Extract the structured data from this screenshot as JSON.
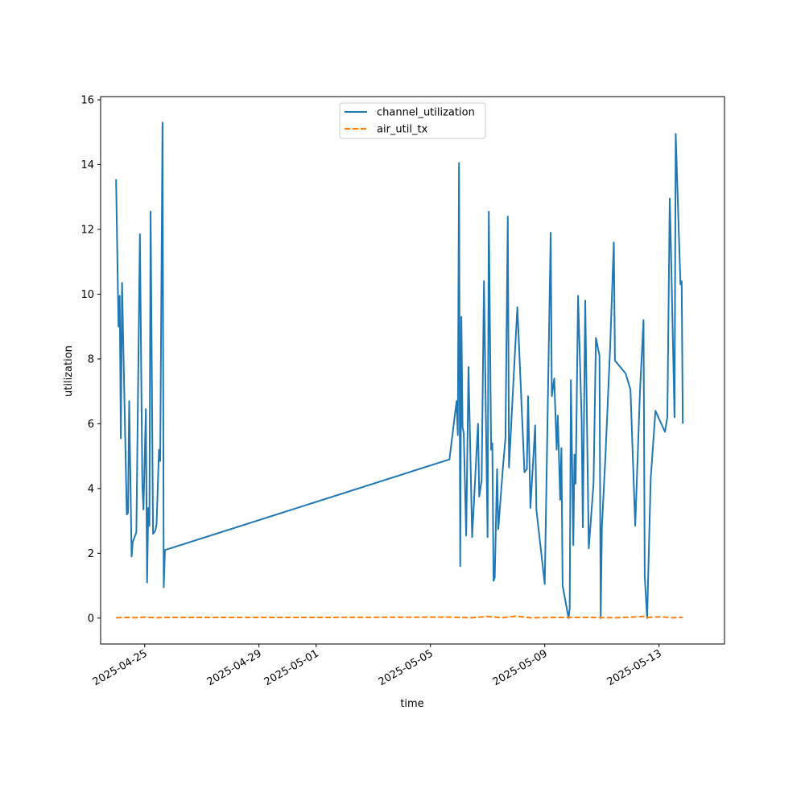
{
  "chart_data": {
    "type": "line",
    "title": "",
    "xlabel": "time",
    "ylabel": "utilization",
    "x_is_date": true,
    "xlim": [
      "2025-04-23T11:00",
      "2025-05-15T07:00"
    ],
    "ylim": [
      -0.8,
      16.1
    ],
    "xticks": [
      "2025-04-25",
      "2025-04-29",
      "2025-05-01",
      "2025-05-05",
      "2025-05-09",
      "2025-05-13"
    ],
    "yticks": [
      0,
      2,
      4,
      6,
      8,
      10,
      12,
      14,
      16
    ],
    "grid": false,
    "legend": "upper center",
    "colors": {
      "channel_utilization": "#1f77b4",
      "air_util_tx": "#ff7f0e"
    },
    "series": [
      {
        "name": "channel_utilization",
        "style": "solid",
        "points": [
          [
            "2025-04-24T00:00",
            13.55
          ],
          [
            "2025-04-24T02:00",
            9.0
          ],
          [
            "2025-04-24T03:00",
            9.95
          ],
          [
            "2025-04-24T04:00",
            5.55
          ],
          [
            "2025-04-24T05:00",
            10.35
          ],
          [
            "2025-04-24T09:00",
            3.2
          ],
          [
            "2025-04-24T10:00",
            3.25
          ],
          [
            "2025-04-24T11:00",
            6.7
          ],
          [
            "2025-04-24T13:00",
            1.9
          ],
          [
            "2025-04-24T14:00",
            2.35
          ],
          [
            "2025-04-24T17:00",
            2.65
          ],
          [
            "2025-04-24T20:00",
            11.85
          ],
          [
            "2025-04-24T22:00",
            4.15
          ],
          [
            "2025-04-24T23:00",
            3.35
          ],
          [
            "2025-04-25T01:00",
            6.45
          ],
          [
            "2025-04-25T02:00",
            1.1
          ],
          [
            "2025-04-25T03:00",
            3.4
          ],
          [
            "2025-04-25T04:00",
            2.85
          ],
          [
            "2025-04-25T05:00",
            12.55
          ],
          [
            "2025-04-25T07:00",
            2.6
          ],
          [
            "2025-04-25T09:00",
            2.7
          ],
          [
            "2025-04-25T10:00",
            2.9
          ],
          [
            "2025-04-25T12:00",
            5.2
          ],
          [
            "2025-04-25T13:00",
            4.85
          ],
          [
            "2025-04-25T15:00",
            15.3
          ],
          [
            "2025-04-25T16:00",
            0.95
          ],
          [
            "2025-04-25T17:00",
            2.1
          ],
          [
            "2025-05-05T16:00",
            4.9
          ],
          [
            "2025-05-05T22:00",
            6.7
          ],
          [
            "2025-05-05T23:00",
            5.65
          ],
          [
            "2025-05-06T00:00",
            14.05
          ],
          [
            "2025-05-06T01:00",
            1.6
          ],
          [
            "2025-05-06T02:00",
            9.3
          ],
          [
            "2025-05-06T03:00",
            5.9
          ],
          [
            "2025-05-06T04:00",
            5.7
          ],
          [
            "2025-05-06T06:00",
            2.55
          ],
          [
            "2025-05-06T08:00",
            7.75
          ],
          [
            "2025-05-06T11:00",
            2.5
          ],
          [
            "2025-05-06T16:00",
            6.0
          ],
          [
            "2025-05-06T17:00",
            3.75
          ],
          [
            "2025-05-06T19:00",
            4.25
          ],
          [
            "2025-05-06T21:00",
            10.4
          ],
          [
            "2025-05-07T00:00",
            2.5
          ],
          [
            "2025-05-07T01:00",
            12.55
          ],
          [
            "2025-05-07T03:00",
            5.2
          ],
          [
            "2025-05-07T04:00",
            5.4
          ],
          [
            "2025-05-07T05:00",
            1.15
          ],
          [
            "2025-05-07T06:00",
            1.25
          ],
          [
            "2025-05-07T08:00",
            4.6
          ],
          [
            "2025-05-07T09:00",
            2.75
          ],
          [
            "2025-05-07T13:00",
            4.7
          ],
          [
            "2025-05-07T15:00",
            5.55
          ],
          [
            "2025-05-07T17:00",
            12.4
          ],
          [
            "2025-05-07T18:00",
            4.65
          ],
          [
            "2025-05-07T22:00",
            7.5
          ],
          [
            "2025-05-08T01:00",
            9.6
          ],
          [
            "2025-05-08T07:00",
            4.5
          ],
          [
            "2025-05-08T09:00",
            4.6
          ],
          [
            "2025-05-08T10:00",
            6.85
          ],
          [
            "2025-05-08T12:00",
            3.4
          ],
          [
            "2025-05-08T16:00",
            5.95
          ],
          [
            "2025-05-08T17:00",
            3.35
          ],
          [
            "2025-05-09T00:00",
            1.05
          ],
          [
            "2025-05-09T05:00",
            11.9
          ],
          [
            "2025-05-09T06:00",
            6.85
          ],
          [
            "2025-05-09T08:00",
            7.4
          ],
          [
            "2025-05-09T10:00",
            5.2
          ],
          [
            "2025-05-09T11:00",
            6.25
          ],
          [
            "2025-05-09T13:00",
            3.65
          ],
          [
            "2025-05-09T14:00",
            5.25
          ],
          [
            "2025-05-09T15:00",
            1.0
          ],
          [
            "2025-05-09T20:00",
            0.0
          ],
          [
            "2025-05-09T21:00",
            0.3
          ],
          [
            "2025-05-09T22:00",
            7.35
          ],
          [
            "2025-05-10T00:00",
            2.25
          ],
          [
            "2025-05-10T01:00",
            5.05
          ],
          [
            "2025-05-10T02:00",
            4.15
          ],
          [
            "2025-05-10T04:00",
            9.95
          ],
          [
            "2025-05-10T07:00",
            6.15
          ],
          [
            "2025-05-10T08:00",
            2.8
          ],
          [
            "2025-05-10T10:00",
            9.8
          ],
          [
            "2025-05-10T13:00",
            2.15
          ],
          [
            "2025-05-10T17:00",
            4.15
          ],
          [
            "2025-05-10T19:00",
            8.65
          ],
          [
            "2025-05-10T22:00",
            8.1
          ],
          [
            "2025-05-10T23:00",
            0.0
          ],
          [
            "2025-05-11T00:00",
            2.8
          ],
          [
            "2025-05-11T03:00",
            5.0
          ],
          [
            "2025-05-11T07:00",
            8.4
          ],
          [
            "2025-05-11T10:00",
            11.6
          ],
          [
            "2025-05-11T11:00",
            7.95
          ],
          [
            "2025-05-11T20:00",
            7.55
          ],
          [
            "2025-05-12T00:00",
            7.05
          ],
          [
            "2025-05-12T04:00",
            2.85
          ],
          [
            "2025-05-12T08:00",
            7.0
          ],
          [
            "2025-05-12T11:00",
            9.2
          ],
          [
            "2025-05-12T12:00",
            1.3
          ],
          [
            "2025-05-12T14:00",
            0.0
          ],
          [
            "2025-05-12T17:00",
            4.3
          ],
          [
            "2025-05-12T21:00",
            6.4
          ],
          [
            "2025-05-13T05:00",
            5.75
          ],
          [
            "2025-05-13T07:00",
            6.2
          ],
          [
            "2025-05-13T09:00",
            12.95
          ],
          [
            "2025-05-13T10:00",
            11.5
          ],
          [
            "2025-05-13T13:00",
            6.2
          ],
          [
            "2025-05-13T14:00",
            14.95
          ],
          [
            "2025-05-13T18:00",
            10.3
          ],
          [
            "2025-05-13T19:00",
            10.4
          ],
          [
            "2025-05-13T20:00",
            6.0
          ]
        ]
      },
      {
        "name": "air_util_tx",
        "style": "dashed",
        "points": [
          [
            "2025-04-24T00:00",
            0.01
          ],
          [
            "2025-04-24T08:00",
            0.02
          ],
          [
            "2025-04-24T16:00",
            0.01
          ],
          [
            "2025-04-25T00:00",
            0.03
          ],
          [
            "2025-04-25T10:00",
            0.01
          ],
          [
            "2025-04-25T17:00",
            0.02
          ],
          [
            "2025-05-01T00:00",
            0.02
          ],
          [
            "2025-05-05T16:00",
            0.03
          ],
          [
            "2025-05-06T10:00",
            0.01
          ],
          [
            "2025-05-07T00:00",
            0.05
          ],
          [
            "2025-05-07T12:00",
            0.01
          ],
          [
            "2025-05-08T00:00",
            0.06
          ],
          [
            "2025-05-08T12:00",
            0.01
          ],
          [
            "2025-05-09T12:00",
            0.02
          ],
          [
            "2025-05-10T12:00",
            0.02
          ],
          [
            "2025-05-11T12:00",
            0.01
          ],
          [
            "2025-05-12T12:00",
            0.05
          ],
          [
            "2025-05-12T14:00",
            0.02
          ],
          [
            "2025-05-13T00:00",
            0.04
          ],
          [
            "2025-05-13T12:00",
            0.01
          ],
          [
            "2025-05-13T20:00",
            0.02
          ]
        ]
      }
    ]
  }
}
